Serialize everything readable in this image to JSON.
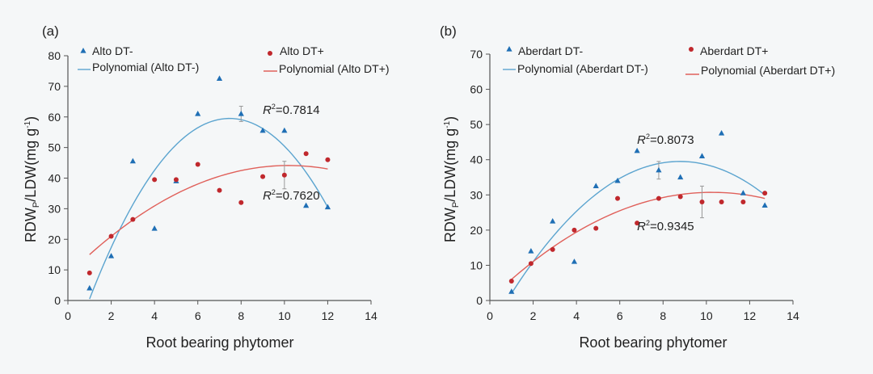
{
  "chart_data": [
    {
      "type": "scatter",
      "panel_label": "(a)",
      "xlabel": "Root bearing phytomer",
      "ylabel": {
        "main": "RDW",
        "sub": "P",
        "mid": "/LDW(mg g",
        "sup": "-1",
        "end": ")"
      },
      "xlim": [
        0,
        14
      ],
      "ylim": [
        0,
        80
      ],
      "xticks": [
        "0",
        "2",
        "4",
        "6",
        "8",
        "10",
        "12",
        "14"
      ],
      "yticks": [
        "0",
        "10",
        "20",
        "30",
        "40",
        "50",
        "60",
        "70",
        "80"
      ],
      "series": [
        {
          "name": "Alto DT-",
          "marker": "triangle",
          "color": "#1f6fb5",
          "x": [
            1,
            2,
            3,
            4,
            5,
            6,
            7,
            8,
            9,
            10,
            11,
            12
          ],
          "y": [
            4,
            14.5,
            45.5,
            23.5,
            39,
            61,
            72.5,
            61,
            55.5,
            55.5,
            31,
            30.5
          ],
          "error_bars": [
            {
              "x": 8,
              "y": 61,
              "err": 2.5
            }
          ]
        },
        {
          "name": "Alto DT+",
          "marker": "circle",
          "color": "#c0282d",
          "x": [
            1,
            2,
            3,
            4,
            5,
            6,
            7,
            8,
            9,
            10,
            11,
            12
          ],
          "y": [
            9,
            21,
            26.5,
            39.5,
            39.5,
            44.5,
            36,
            32,
            40.5,
            41,
            48,
            46
          ],
          "error_bars": [
            {
              "x": 10,
              "y": 41,
              "err": 4.5
            }
          ]
        }
      ],
      "trendlines": [
        {
          "name": "Polynomial (Alto DT-)",
          "color": "#5ba4cf",
          "x_range": [
            1,
            12
          ],
          "points": [
            [
              1,
              0.5
            ],
            [
              7.4,
              59.5
            ],
            [
              12,
              30.5
            ]
          ]
        },
        {
          "name": "Polynomial (Alto DT+)",
          "color": "#e0605a",
          "x_range": [
            1,
            12
          ],
          "points": [
            [
              1,
              15
            ],
            [
              10.8,
              44
            ],
            [
              12,
              43
            ]
          ]
        }
      ],
      "annotations": [
        {
          "italic": "R",
          "sup": "2",
          "text": "=0.7814",
          "x": 9,
          "y": 61
        },
        {
          "italic": "R",
          "sup": "2",
          "text": "=0.7620",
          "x": 9,
          "y": 33
        }
      ]
    },
    {
      "type": "scatter",
      "panel_label": "(b)",
      "xlabel": "Root bearing phytomer",
      "ylabel": {
        "main": "RDW",
        "sub": "P",
        "mid": "/LDW(mg g",
        "sup": "-1",
        "end": ")"
      },
      "xlim": [
        0,
        14
      ],
      "ylim": [
        0,
        70
      ],
      "xticks": [
        "0",
        "2",
        "4",
        "6",
        "8",
        "10",
        "12",
        "14"
      ],
      "yticks": [
        "0",
        "10",
        "20",
        "30",
        "40",
        "50",
        "60",
        "70"
      ],
      "series": [
        {
          "name": "Aberdart DT-",
          "marker": "triangle",
          "color": "#1f6fb5",
          "x": [
            1,
            1.9,
            2.9,
            3.9,
            4.9,
            5.9,
            6.8,
            7.8,
            8.8,
            9.8,
            10.7,
            11.7,
            12.7
          ],
          "y": [
            2.5,
            14,
            22.5,
            11,
            32.5,
            34,
            42.5,
            37,
            35,
            41,
            47.5,
            30.5,
            27
          ],
          "error_bars": [
            {
              "x": 7.8,
              "y": 37,
              "err": 2.5
            }
          ]
        },
        {
          "name": "Aberdart DT+",
          "marker": "circle",
          "color": "#c0282d",
          "x": [
            1,
            1.9,
            2.9,
            3.9,
            4.9,
            5.9,
            6.8,
            7.8,
            8.8,
            9.8,
            10.7,
            11.7,
            12.7
          ],
          "y": [
            5.5,
            10.5,
            14.5,
            20,
            20.5,
            29,
            22,
            29,
            29.5,
            28,
            28,
            28,
            30.5
          ],
          "error_bars": [
            {
              "x": 9.8,
              "y": 28,
              "err": 4.5
            }
          ]
        }
      ],
      "trendlines": [
        {
          "name": "Polynomial (Aberdart DT-)",
          "color": "#5ba4cf",
          "x_range": [
            1,
            12.7
          ],
          "points": [
            [
              1,
              2
            ],
            [
              8.7,
              39.5
            ],
            [
              12.7,
              30
            ]
          ]
        },
        {
          "name": "Polynomial (Aberdart DT+)",
          "color": "#e0605a",
          "x_range": [
            1,
            12.7
          ],
          "points": [
            [
              1,
              6
            ],
            [
              6,
              25.5
            ],
            [
              12.7,
              29
            ]
          ]
        }
      ],
      "annotations": [
        {
          "italic": "R",
          "sup": "2",
          "text": "=0.8073",
          "x": 6.8,
          "y": 44.5
        },
        {
          "italic": "R",
          "sup": "2",
          "text": "=0.9345",
          "x": 6.8,
          "y": 20
        }
      ]
    }
  ]
}
